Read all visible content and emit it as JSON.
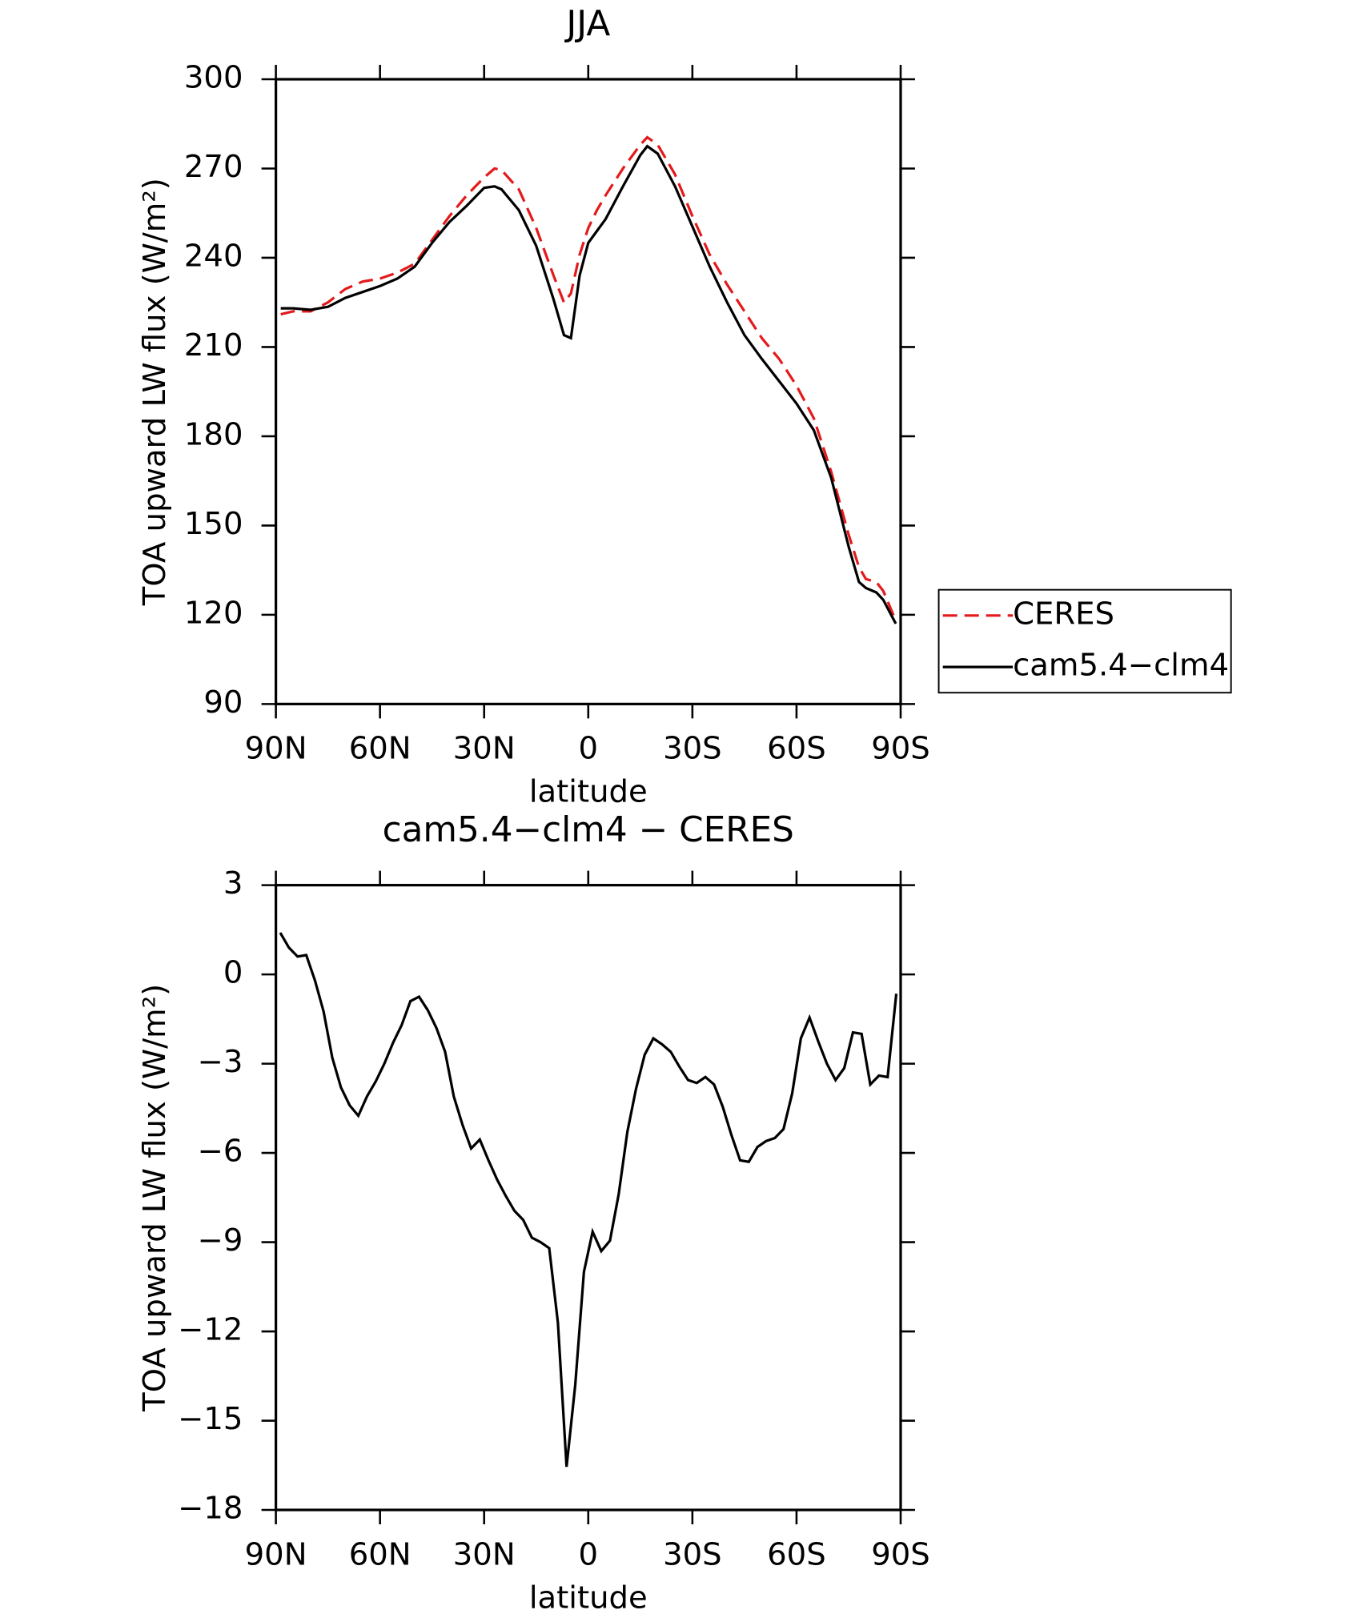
{
  "chart_data": [
    {
      "type": "line",
      "title": "JJA",
      "x_label": "latitude",
      "y_label": "TOA upward LW flux (W/m²)",
      "x": [
        88.6,
        85,
        80,
        75,
        70,
        65,
        60,
        55,
        50,
        45,
        40,
        35,
        30,
        27,
        25,
        20,
        15,
        10,
        7,
        5,
        2.5,
        0,
        -2.5,
        -5,
        -10,
        -15,
        -17,
        -20,
        -25,
        -30,
        -35,
        -40,
        -45,
        -50,
        -55,
        -60,
        -65,
        -70,
        -75,
        -78,
        -80,
        -83,
        -85,
        -88.6
      ],
      "series": [
        {
          "name": "CERES",
          "color": "#e41a1c",
          "dash": true,
          "values": [
            221,
            222,
            222,
            225,
            229.5,
            232,
            233,
            235,
            238,
            246,
            254,
            261,
            267,
            270,
            269.5,
            263,
            250,
            234,
            225,
            228,
            241,
            250,
            256,
            261,
            270,
            278,
            280.5,
            278,
            268,
            254,
            241,
            231,
            222,
            213,
            206,
            197,
            186,
            168,
            147,
            136,
            132,
            131,
            128,
            118
          ]
        },
        {
          "name": "cam5.4−clm4",
          "color": "#000000",
          "dash": false,
          "values": [
            223,
            223,
            222.5,
            223.5,
            226.5,
            228.5,
            230.5,
            233,
            237,
            245,
            252,
            257.5,
            263.5,
            264,
            263,
            256,
            244,
            226,
            214,
            213,
            234,
            245,
            249,
            253,
            264,
            274.5,
            277.5,
            275,
            264,
            250.5,
            237,
            225,
            214,
            206,
            198.5,
            191,
            182,
            166,
            143,
            131,
            129,
            127.5,
            125,
            117
          ]
        }
      ],
      "xlim": [
        90,
        -90
      ],
      "xticks": [
        {
          "value": 90,
          "label": "90N"
        },
        {
          "value": 60,
          "label": "60N"
        },
        {
          "value": 30,
          "label": "30N"
        },
        0,
        {
          "value": -30,
          "label": "30S"
        },
        {
          "value": -60,
          "label": "60S"
        },
        {
          "value": -90,
          "label": "90S"
        }
      ],
      "ylim": [
        90,
        300
      ],
      "yticks": [
        90,
        120,
        150,
        180,
        210,
        240,
        270,
        300
      ],
      "legend": "right"
    },
    {
      "type": "line",
      "title": "cam5.4−clm4 − CERES",
      "x_label": "latitude",
      "y_label": "TOA upward LW flux (W/m²)",
      "x": [
        88.75,
        86.25,
        83.75,
        81.25,
        78.75,
        76.25,
        73.75,
        71.25,
        68.75,
        66.25,
        63.75,
        61.25,
        58.75,
        56.25,
        53.75,
        51.25,
        48.75,
        46.25,
        43.75,
        41.25,
        38.75,
        36.25,
        33.75,
        31.25,
        28.75,
        26.25,
        23.75,
        21.25,
        18.75,
        16.25,
        13.75,
        11.25,
        8.75,
        6.25,
        3.75,
        1.25,
        -1.25,
        -3.75,
        -6.25,
        -8.75,
        -11.25,
        -13.75,
        -16.25,
        -18.75,
        -21.25,
        -23.75,
        -26.25,
        -28.75,
        -31.25,
        -33.75,
        -36.25,
        -38.75,
        -41.25,
        -43.75,
        -46.25,
        -48.75,
        -51.25,
        -53.75,
        -56.25,
        -58.75,
        -61.25,
        -63.75,
        -66.25,
        -68.75,
        -71.25,
        -73.75,
        -76.25,
        -78.75,
        -81.25,
        -83.75,
        -86.25,
        -88.75
      ],
      "values": [
        1.4,
        0.9,
        0.6,
        0.65,
        -0.2,
        -1.25,
        -2.8,
        -3.8,
        -4.4,
        -4.75,
        -4.1,
        -3.6,
        -3.0,
        -2.3,
        -1.7,
        -0.9,
        -0.75,
        -1.2,
        -1.8,
        -2.6,
        -4.1,
        -5.05,
        -5.85,
        -5.55,
        -6.25,
        -6.9,
        -7.45,
        -7.95,
        -8.25,
        -8.85,
        -9.0,
        -9.2,
        -11.7,
        -16.55,
        -13.8,
        -10.0,
        -8.65,
        -9.3,
        -8.95,
        -7.4,
        -5.3,
        -3.85,
        -2.7,
        -2.15,
        -2.35,
        -2.6,
        -3.1,
        -3.55,
        -3.65,
        -3.45,
        -3.7,
        -4.45,
        -5.4,
        -6.25,
        -6.3,
        -5.8,
        -5.6,
        -5.5,
        -5.2,
        -4.0,
        -2.15,
        -1.45,
        -2.25,
        -3.0,
        -3.55,
        -3.15,
        -1.95,
        -2.0,
        -3.7,
        -3.4,
        -3.45,
        -0.65
      ],
      "color": "#000000",
      "xlim": [
        90,
        -90
      ],
      "xticks": [
        {
          "value": 90,
          "label": "90N"
        },
        {
          "value": 60,
          "label": "60N"
        },
        {
          "value": 30,
          "label": "30N"
        },
        0,
        {
          "value": -30,
          "label": "30S"
        },
        {
          "value": -60,
          "label": "60S"
        },
        {
          "value": -90,
          "label": "90S"
        }
      ],
      "ylim": [
        -18,
        3
      ],
      "yticks": [
        3,
        0,
        {
          "value": -3,
          "label": "−3"
        },
        {
          "value": -6,
          "label": "−6"
        },
        {
          "value": -9,
          "label": "−9"
        },
        {
          "value": -12,
          "label": "−12"
        },
        {
          "value": -15,
          "label": "−15"
        },
        {
          "value": -18,
          "label": "−18"
        }
      ]
    }
  ]
}
